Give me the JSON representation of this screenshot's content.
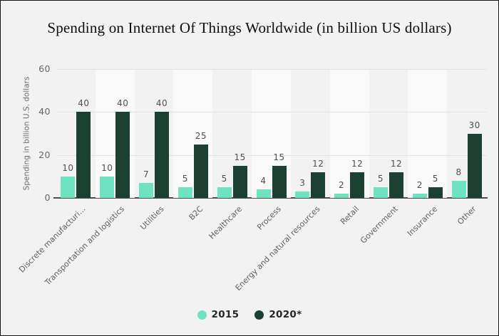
{
  "page": {
    "title": "Spending on Internet Of Things Worldwide (in billion US dollars)",
    "background": "#f2f2f2",
    "band_highlight": "#f9f9f9",
    "gridline_color": "#e2e2e2",
    "axis_color": "#4d4d4d"
  },
  "chart_data": {
    "type": "bar",
    "title": "Spending on Internet Of Things Worldwide (in billion US dollars)",
    "xlabel": "",
    "ylabel": "Spending in billion U.S. dollars",
    "ylim": [
      0,
      60
    ],
    "yticks": [
      0,
      20,
      40,
      60
    ],
    "grid": true,
    "legend_position": "bottom",
    "categories": [
      "Discrete manufacturi...",
      "Transportation and logistics",
      "Utilities",
      "B2C",
      "Healthcare",
      "Process",
      "Energy and natural resources",
      "Retail",
      "Government",
      "Insurance",
      "Other"
    ],
    "series": [
      {
        "name": "2015",
        "color": "#6fe3c1",
        "values": [
          10,
          10,
          7,
          5,
          5,
          4,
          3,
          2,
          5,
          2,
          8
        ]
      },
      {
        "name": "2020*",
        "color": "#1c4031",
        "values": [
          40,
          40,
          40,
          25,
          15,
          15,
          12,
          12,
          12,
          5,
          30
        ]
      }
    ]
  }
}
